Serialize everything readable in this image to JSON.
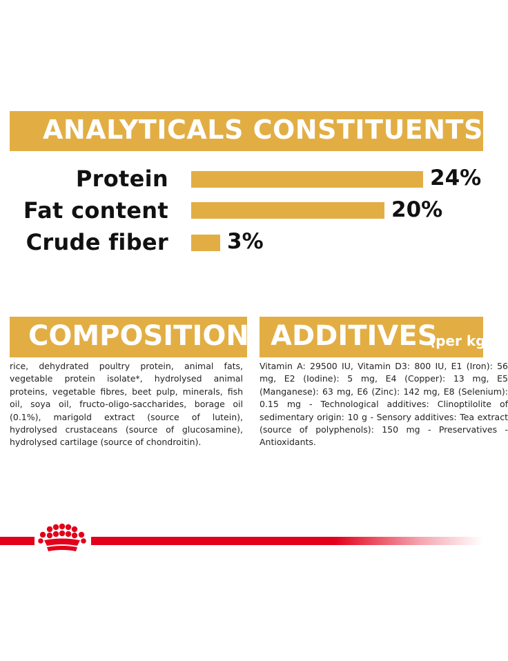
{
  "analytics": {
    "title": "ANALYTICALS CONSTITUENTS",
    "rows": [
      {
        "label": "Protein",
        "value": 24,
        "pct": "24%"
      },
      {
        "label": "Fat content",
        "value": 20,
        "pct": "20%"
      },
      {
        "label": "Crude fiber",
        "value": 3,
        "pct": "3%"
      }
    ]
  },
  "composition": {
    "title": "COMPOSITION",
    "text": "rice, dehydrated poultry protein, animal fats, vegetable protein isolate*, hydrolysed animal proteins, vegetable fibres, beet pulp, minerals, fish oil, soya oil, fructo-oligo-saccharides, borage oil (0.1%), marigold extract (source of lutein), hydrolysed crustaceans (source of glucosamine), hydrolysed cartilage (source of chondroitin)."
  },
  "additives": {
    "title": "ADDITIVES",
    "subtitle": "(per kg",
    "text": "Vitamin A: 29500 IU, Vitamin D3: 800 IU, E1 (Iron): 56 mg, E2 (Iodine): 5 mg, E4 (Copper): 13 mg, E5 (Manganese): 63 mg, E6 (Zinc): 142 mg, E8 (Selenium): 0.15 mg - Technological additives: Clinoptilolite of sedimentary origin: 10 g - Sensory additives: Tea extract (source of polyphenols): 150 mg - Preservatives - Antioxidants."
  },
  "brand": {
    "logo": "royal-canin-crown-icon",
    "accent_color": "#e2ae44",
    "line_color": "#e2001a"
  }
}
